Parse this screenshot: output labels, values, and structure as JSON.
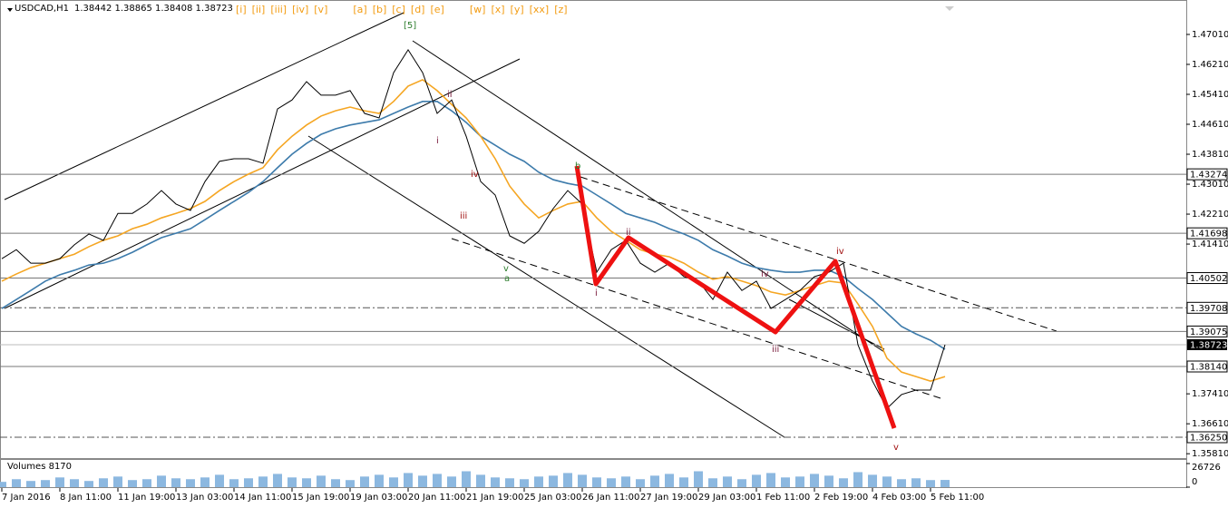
{
  "header": {
    "symbol": "USDCAD,H1",
    "ohlc": "1.38442 1.38865 1.38408 1.38723",
    "wave_buttons": [
      "[i]",
      "[ii]",
      "[iii]",
      "[iv]",
      "[v]",
      "[a]",
      "[b]",
      "[c]",
      "[d]",
      "[e]",
      "[w]",
      "[x]",
      "[y]",
      "[xx]",
      "[z]"
    ]
  },
  "chart_data": {
    "type": "line",
    "categories": [
      "7 Jan 2016",
      null,
      null,
      null,
      "8 Jan 11:00",
      null,
      null,
      null,
      "11 Jan 19:00",
      null,
      null,
      null,
      "13 Jan 03:00",
      null,
      null,
      null,
      "14 Jan 11:00",
      null,
      null,
      null,
      "15 Jan 19:00",
      null,
      null,
      null,
      "19 Jan 03:00",
      null,
      null,
      null,
      "20 Jan 11:00",
      null,
      null,
      null,
      "21 Jan 19:00",
      null,
      null,
      null,
      "25 Jan 03:00",
      null,
      null,
      null,
      "26 Jan 11:00",
      null,
      null,
      null,
      "27 Jan 19:00",
      null,
      null,
      null,
      "29 Jan 03:00",
      null,
      null,
      null,
      "1 Feb 11:00",
      null,
      null,
      null,
      "2 Feb 19:00",
      null,
      null,
      null,
      "4 Feb 03:00",
      null,
      null,
      null,
      "5 Feb 11:00",
      null
    ],
    "series": [
      {
        "color": "#000000",
        "values": [
          1.4102,
          1.4126,
          1.409,
          1.409,
          1.4102,
          1.4139,
          1.4168,
          1.4151,
          1.4223,
          1.4223,
          1.4248,
          1.4284,
          1.4248,
          1.4231,
          1.4308,
          1.4362,
          1.4369,
          1.4369,
          1.4357,
          1.4502,
          1.4526,
          1.4575,
          1.4539,
          1.4539,
          1.4551,
          1.449,
          1.4478,
          1.4599,
          1.466,
          1.4599,
          1.449,
          1.4526,
          1.4429,
          1.4308,
          1.4272,
          1.4163,
          1.4143,
          1.4175,
          1.4236,
          1.4284,
          1.4248,
          1.4066,
          1.4126,
          1.4151,
          1.409,
          1.4066,
          1.409,
          1.4054,
          1.4042,
          1.3993,
          1.4066,
          1.4017,
          1.4042,
          1.3969,
          1.3993,
          1.4017,
          1.4054,
          1.4066,
          1.409,
          1.3872,
          1.3775,
          1.3702,
          1.3739,
          1.3751,
          1.3751,
          1.3872
        ]
      },
      {
        "color": "#f5a623",
        "values": [
          1.4042,
          1.4061,
          1.4078,
          1.409,
          1.4102,
          1.4114,
          1.4134,
          1.4151,
          1.4163,
          1.4182,
          1.4194,
          1.4211,
          1.4223,
          1.4236,
          1.4255,
          1.4284,
          1.4308,
          1.4328,
          1.4345,
          1.4393,
          1.4429,
          1.4459,
          1.4483,
          1.4497,
          1.4507,
          1.4497,
          1.449,
          1.4522,
          1.4563,
          1.458,
          1.4551,
          1.4514,
          1.4478,
          1.4429,
          1.4369,
          1.4296,
          1.4248,
          1.4211,
          1.4231,
          1.4248,
          1.4255,
          1.4211,
          1.4175,
          1.4151,
          1.4126,
          1.4114,
          1.4107,
          1.409,
          1.4066,
          1.4047,
          1.4054,
          1.4042,
          1.403,
          1.4013,
          1.4005,
          1.4017,
          1.403,
          1.4042,
          1.4037,
          1.3981,
          1.3921,
          1.3836,
          1.3799,
          1.3787,
          1.3775,
          1.3787
        ]
      },
      {
        "color": "#3d7bab",
        "values": [
          1.3969,
          1.3993,
          1.4017,
          1.4042,
          1.4059,
          1.4071,
          1.4085,
          1.409,
          1.4102,
          1.4119,
          1.4139,
          1.4158,
          1.417,
          1.4182,
          1.4206,
          1.4231,
          1.4255,
          1.4279,
          1.4308,
          1.4345,
          1.4381,
          1.441,
          1.4434,
          1.4449,
          1.4459,
          1.4466,
          1.4473,
          1.449,
          1.4507,
          1.4522,
          1.4522,
          1.4497,
          1.4466,
          1.4429,
          1.4405,
          1.4381,
          1.4362,
          1.4333,
          1.4313,
          1.4303,
          1.4296,
          1.4272,
          1.4248,
          1.4223,
          1.4211,
          1.4199,
          1.4182,
          1.4168,
          1.4151,
          1.4126,
          1.4109,
          1.409,
          1.4078,
          1.4071,
          1.4066,
          1.4066,
          1.4071,
          1.4071,
          1.4054,
          1.4022,
          1.3993,
          1.3957,
          1.3921,
          1.3901,
          1.3884,
          1.386
        ]
      }
    ],
    "ylim": [
      1.3562,
      1.4793
    ],
    "yticks": [
      {
        "value": 1.4701,
        "label": "1.47010"
      },
      {
        "value": 1.4621,
        "label": "1.46210"
      },
      {
        "value": 1.4541,
        "label": "1.45410"
      },
      {
        "value": 1.4461,
        "label": "1.44610"
      },
      {
        "value": 1.4381,
        "label": "1.43810"
      },
      {
        "value": 1.4301,
        "label": "1.43010"
      },
      {
        "value": 1.4221,
        "label": "1.42210"
      },
      {
        "value": 1.4141,
        "label": "1.41410"
      },
      {
        "value": 1.3741,
        "label": "1.37410"
      },
      {
        "value": 1.3661,
        "label": "1.36610"
      },
      {
        "value": 1.3581,
        "label": "1.35810"
      }
    ],
    "levels": [
      {
        "value": 1.43274,
        "style": "solid"
      },
      {
        "value": 1.41698,
        "style": "solid"
      },
      {
        "value": 1.40502,
        "style": "solid"
      },
      {
        "value": 1.39708,
        "style": "dash-dot"
      },
      {
        "value": 1.39075,
        "style": "solid"
      },
      {
        "value": 1.3814,
        "label": "1.38140",
        "style": "solid"
      },
      {
        "value": 1.3625,
        "label": "1.36250",
        "style": "dash-dot"
      }
    ],
    "last_price": 1.38723,
    "annotations": [
      {
        "text": "[5]",
        "color": "#2d7d2d"
      },
      {
        "text": "i",
        "color": "#7a1c3c"
      },
      {
        "text": "ii",
        "color": "#7a1c3c"
      },
      {
        "text": "iii",
        "color": "#a01010"
      },
      {
        "text": "iv",
        "color": "#a01010"
      },
      {
        "text": "v",
        "color": "#2d7d2d"
      },
      {
        "text": "a",
        "color": "#2d7d2d"
      },
      {
        "text": "b",
        "color": "#2d7d2d"
      },
      {
        "text": "i",
        "color": "#7a1c3c"
      },
      {
        "text": "ii",
        "color": "#7a1c3c"
      },
      {
        "text": "iii",
        "color": "#7a1c3c"
      },
      {
        "text": "iv",
        "color": "#a01010"
      },
      {
        "text": "v",
        "color": "#a01010"
      },
      {
        "text": "iv",
        "color": "#7a1c3c"
      }
    ],
    "volume": {
      "label": "Volumes 8170",
      "color": "#8cb8e0",
      "ylim": [
        0,
        26726
      ],
      "yticks": [
        26726,
        0
      ],
      "values": [
        6000,
        9000,
        7000,
        8000,
        11000,
        9000,
        7000,
        10000,
        12000,
        8000,
        9000,
        13000,
        10000,
        9000,
        11000,
        14000,
        9000,
        10000,
        12000,
        15000,
        11000,
        10000,
        13000,
        9000,
        8000,
        12000,
        14000,
        11000,
        16000,
        13000,
        15000,
        12000,
        18000,
        14000,
        11000,
        10000,
        9000,
        12000,
        13000,
        16000,
        14000,
        11000,
        10000,
        12000,
        9000,
        13000,
        15000,
        11000,
        18000,
        10000,
        12000,
        9000,
        14000,
        16000,
        11000,
        12000,
        15000,
        13000,
        10000,
        17000,
        14000,
        12000,
        9000,
        10000,
        8000,
        8170
      ]
    }
  }
}
